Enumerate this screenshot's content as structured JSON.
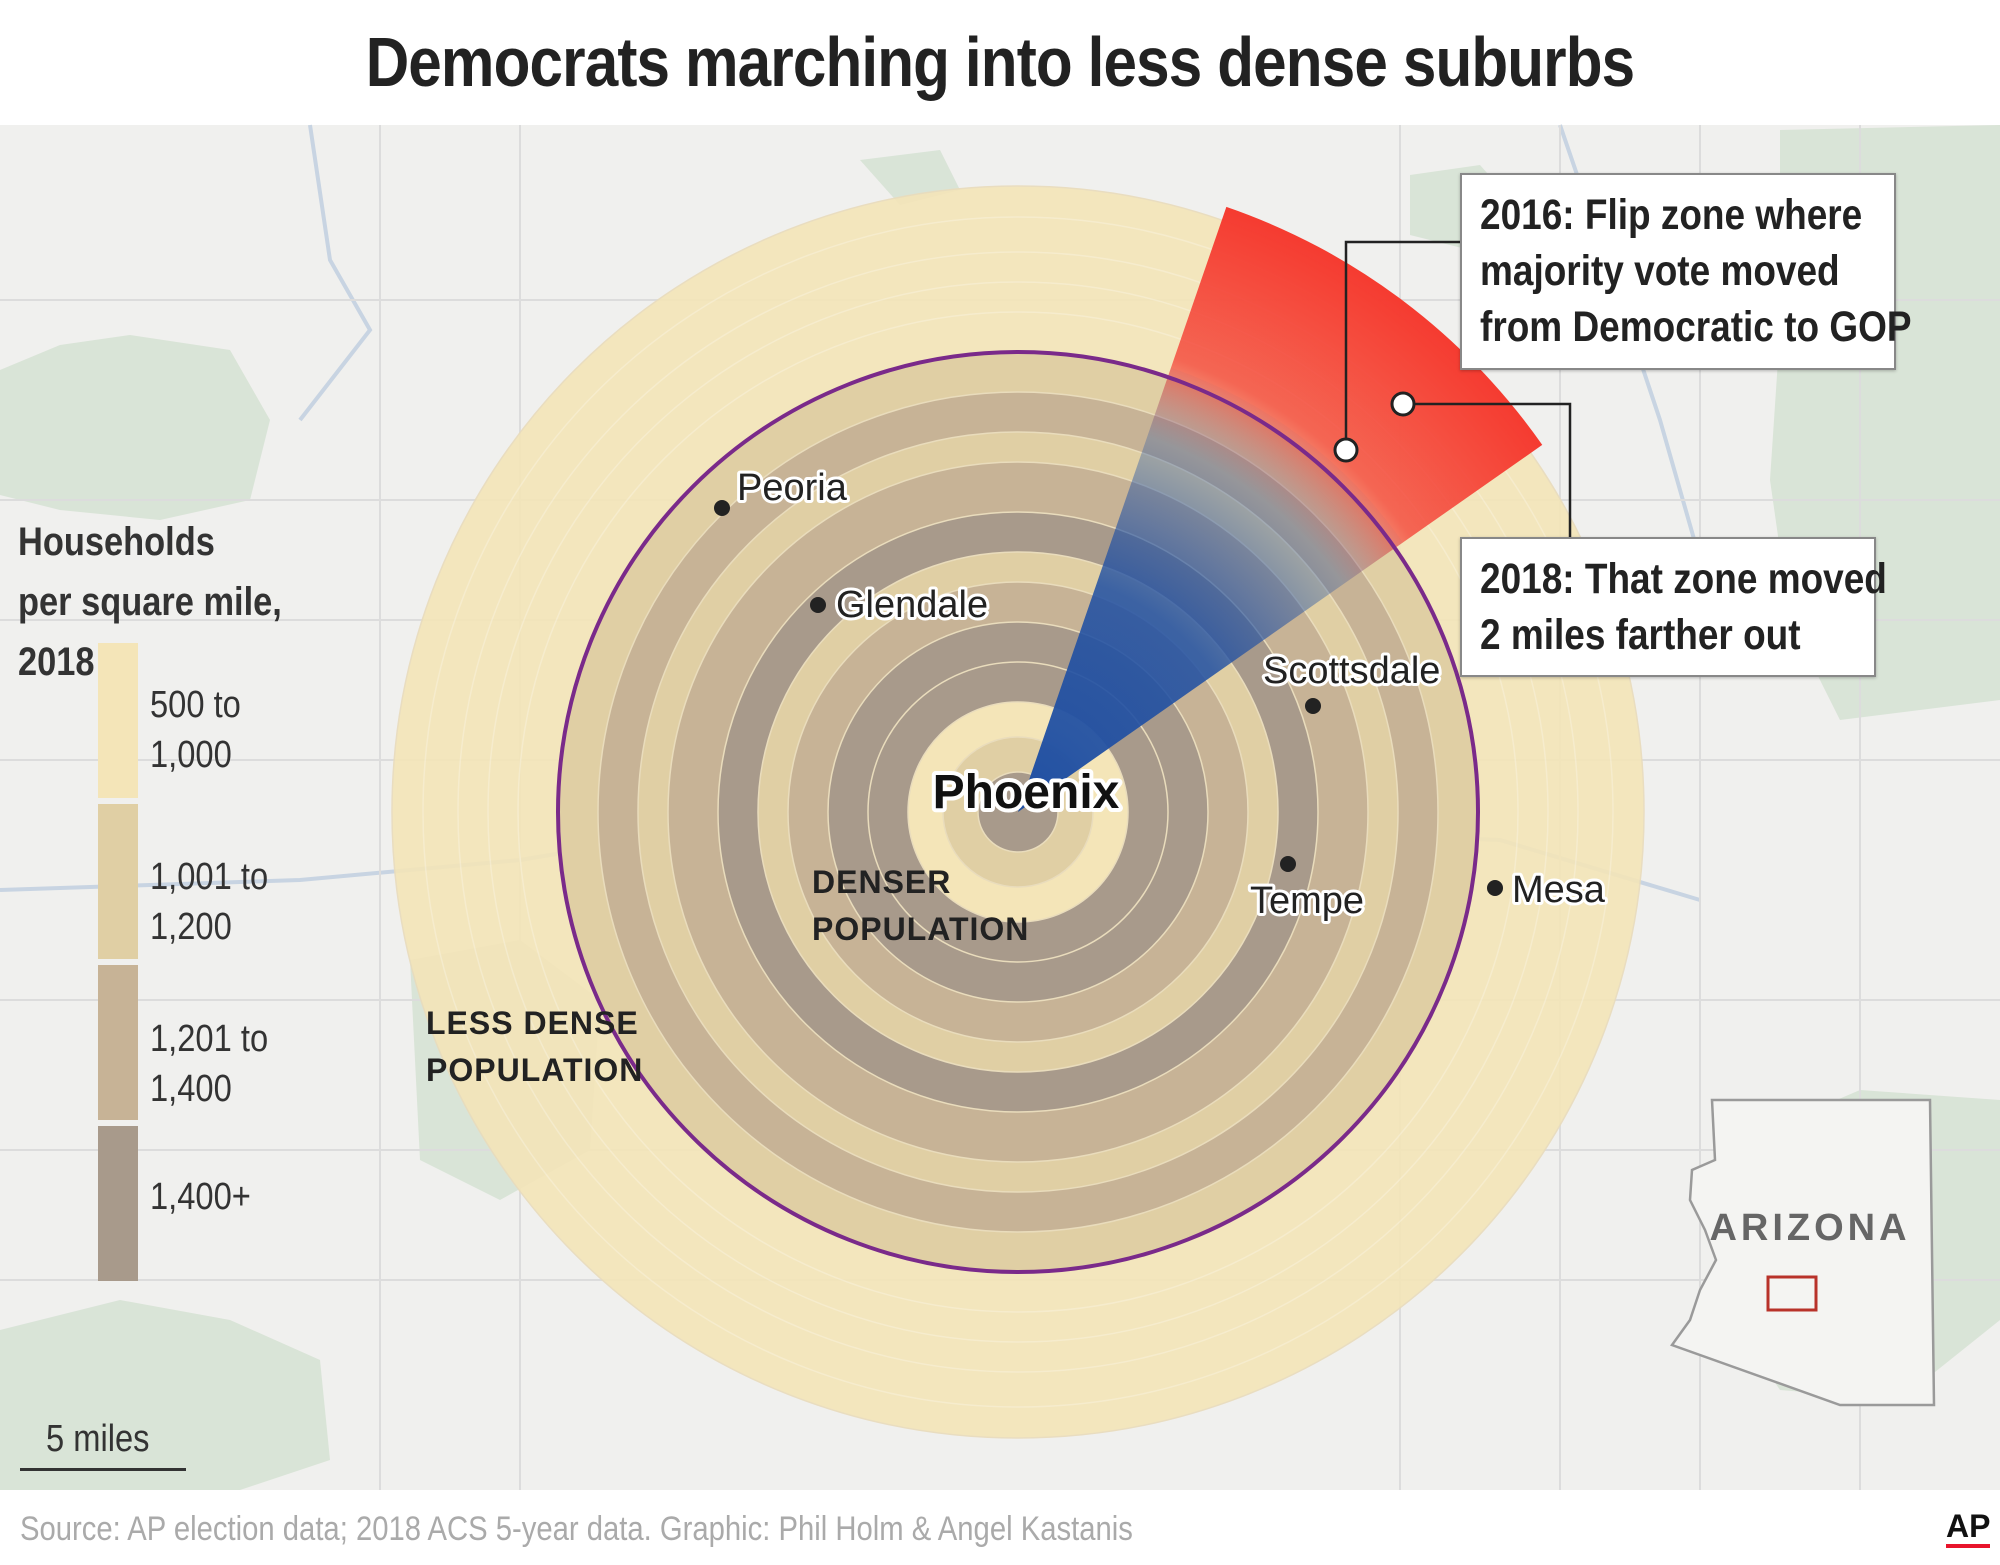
{
  "title": "Democrats marching into less dense suburbs",
  "legend": {
    "title_line1": "Households",
    "title_line2": "per square mile, 2018",
    "items": [
      {
        "line1": "500 to",
        "line2": "1,000",
        "color": "#f4e5b8"
      },
      {
        "line1": "1,001 to",
        "line2": "1,200",
        "color": "#e0cfa4"
      },
      {
        "line1": "1,201 to",
        "line2": "1,400",
        "color": "#c7b396"
      },
      {
        "line1": "1,400+",
        "line2": "",
        "color": "#a89a8b"
      }
    ]
  },
  "places": {
    "center": "Phoenix",
    "cities": [
      "Peoria",
      "Glendale",
      "Scottsdale",
      "Tempe",
      "Mesa"
    ]
  },
  "annotations": {
    "denser_line1": "DENSER",
    "denser_line2": "POPULATION",
    "less_line1": "LESS DENSE",
    "less_line2": "POPULATION"
  },
  "callouts": {
    "c2016": [
      "2016: Flip zone where",
      "majority vote moved",
      "from Democratic to GOP"
    ],
    "c2018": [
      "2018: That zone moved",
      "2 miles farther out"
    ]
  },
  "inset": {
    "label": "ARIZONA"
  },
  "scale": {
    "label": "5 miles"
  },
  "source": "Source: AP election data; 2018 ACS 5-year data. Graphic: Phil Holm & Angel Kastanis",
  "logo": "AP",
  "colors": {
    "flip_2016": "#f53b30",
    "zone_2018": "#1f4fa3",
    "boundary": "#7a2a8a",
    "inset_box": "#b8322a"
  }
}
